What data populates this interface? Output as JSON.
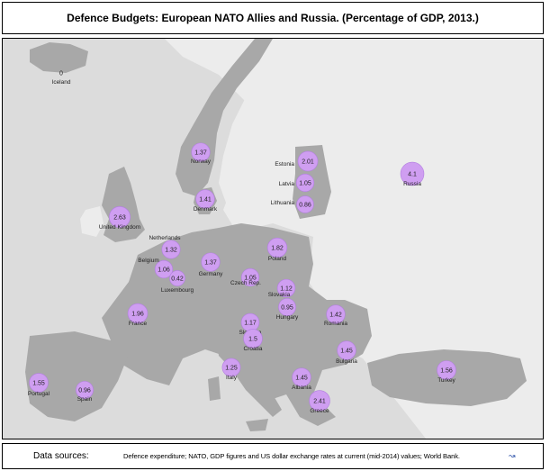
{
  "title": "Defence Budgets: European NATO Allies and Russia.  (Percentage of GDP, 2013.)",
  "map": {
    "colors": {
      "sea": "#dcdcdc",
      "other_land": "#ececec",
      "nato_land": "#a8a8a8",
      "bubble": "#cf9ef1"
    },
    "countries": [
      {
        "id": "iceland",
        "name": "Iceland",
        "value": "0"
      },
      {
        "id": "norway",
        "name": "Norway",
        "value": "1.37"
      },
      {
        "id": "estonia",
        "name": "Estonia",
        "value": "2.01"
      },
      {
        "id": "latvia",
        "name": "Latvia",
        "value": "1.05"
      },
      {
        "id": "lithuania",
        "name": "Lithuania",
        "value": "0.86"
      },
      {
        "id": "russia",
        "name": "Russia",
        "value": "4.1"
      },
      {
        "id": "denmark",
        "name": "Denmark",
        "value": "1.41"
      },
      {
        "id": "uk",
        "name": "United Kingdom",
        "value": "2.63"
      },
      {
        "id": "netherlands",
        "name": "Netherlands",
        "value": "1.32"
      },
      {
        "id": "belgium",
        "name": "Belgium",
        "value": "1.06"
      },
      {
        "id": "luxembourg",
        "name": "Luxembourg",
        "value": "0.42"
      },
      {
        "id": "germany",
        "name": "Germany",
        "value": "1.37"
      },
      {
        "id": "poland",
        "name": "Poland",
        "value": "1.82"
      },
      {
        "id": "czech",
        "name": "Czech Rep.",
        "value": "1.05"
      },
      {
        "id": "slovakia",
        "name": "Slovakia",
        "value": "1.12"
      },
      {
        "id": "hungary",
        "name": "Hungary",
        "value": "0.95"
      },
      {
        "id": "france",
        "name": "France",
        "value": "1.96"
      },
      {
        "id": "slovenia",
        "name": "Slovenia",
        "value": "1.17"
      },
      {
        "id": "croatia",
        "name": "Croatia",
        "value": "1.5"
      },
      {
        "id": "romania",
        "name": "Romania",
        "value": "1.42"
      },
      {
        "id": "bulgaria",
        "name": "Bulgaria",
        "value": "1.45"
      },
      {
        "id": "italy",
        "name": "Italy",
        "value": "1.25"
      },
      {
        "id": "albania",
        "name": "Albania",
        "value": "1.45"
      },
      {
        "id": "greece",
        "name": "Greece",
        "value": "2.41"
      },
      {
        "id": "turkey",
        "name": "Turkey",
        "value": "1.56"
      },
      {
        "id": "portugal",
        "name": "Portugal",
        "value": "1.55"
      },
      {
        "id": "spain",
        "name": "Spain",
        "value": "0.96"
      }
    ]
  },
  "footer": {
    "label": "Data sources:",
    "text": "Defence expenditure; NATO, GDP figures and US dollar exchange rates at current (mid-2014) values; World Bank."
  }
}
